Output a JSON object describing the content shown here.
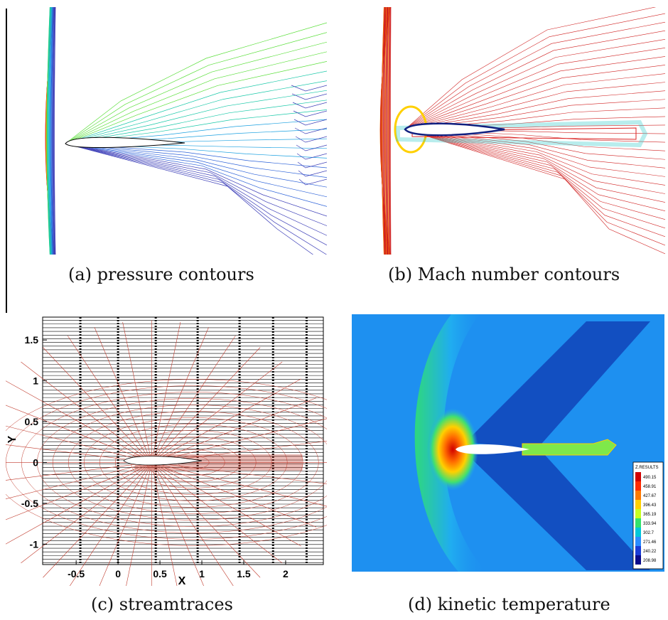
{
  "figure": {
    "captions": {
      "a": "(a) pressure contours",
      "b": "(b) Mach number contours",
      "c": "(c) streamtraces",
      "d": "(d) kinetic temperature"
    }
  },
  "chart_data": [
    {
      "type": "contour",
      "panel": "a",
      "title": "",
      "colormap": "rainbow"
    },
    {
      "type": "contour",
      "panel": "b",
      "title": "",
      "colormap": "red-blue"
    },
    {
      "type": "streamtraces",
      "panel": "c",
      "xlabel": "X",
      "ylabel": "Y",
      "x_ticks": [
        "-0.5",
        "0",
        "0.5",
        "1",
        "1.5",
        "2"
      ],
      "y_ticks": [
        "1.5",
        "1",
        "0.5",
        "0",
        "-0.5",
        "-1"
      ],
      "xlim": [
        -0.9,
        2.45
      ],
      "ylim": [
        -1.25,
        1.78
      ],
      "mesh_color": "#c0392b",
      "streamline_color": "#000000"
    },
    {
      "type": "heatmap",
      "panel": "d",
      "legend": {
        "title": "Z.RESULTS",
        "values": [
          "490.15",
          "458.91",
          "427.67",
          "396.43",
          "365.19",
          "333.94",
          "302.7",
          "271.46",
          "240.22",
          "208.98"
        ],
        "colors": [
          "#d10000",
          "#ff2a00",
          "#ff7a00",
          "#ffd000",
          "#c8ff20",
          "#33e36b",
          "#00c8d8",
          "#2a8cff",
          "#1a3cd6",
          "#0a0a8a"
        ]
      }
    }
  ]
}
